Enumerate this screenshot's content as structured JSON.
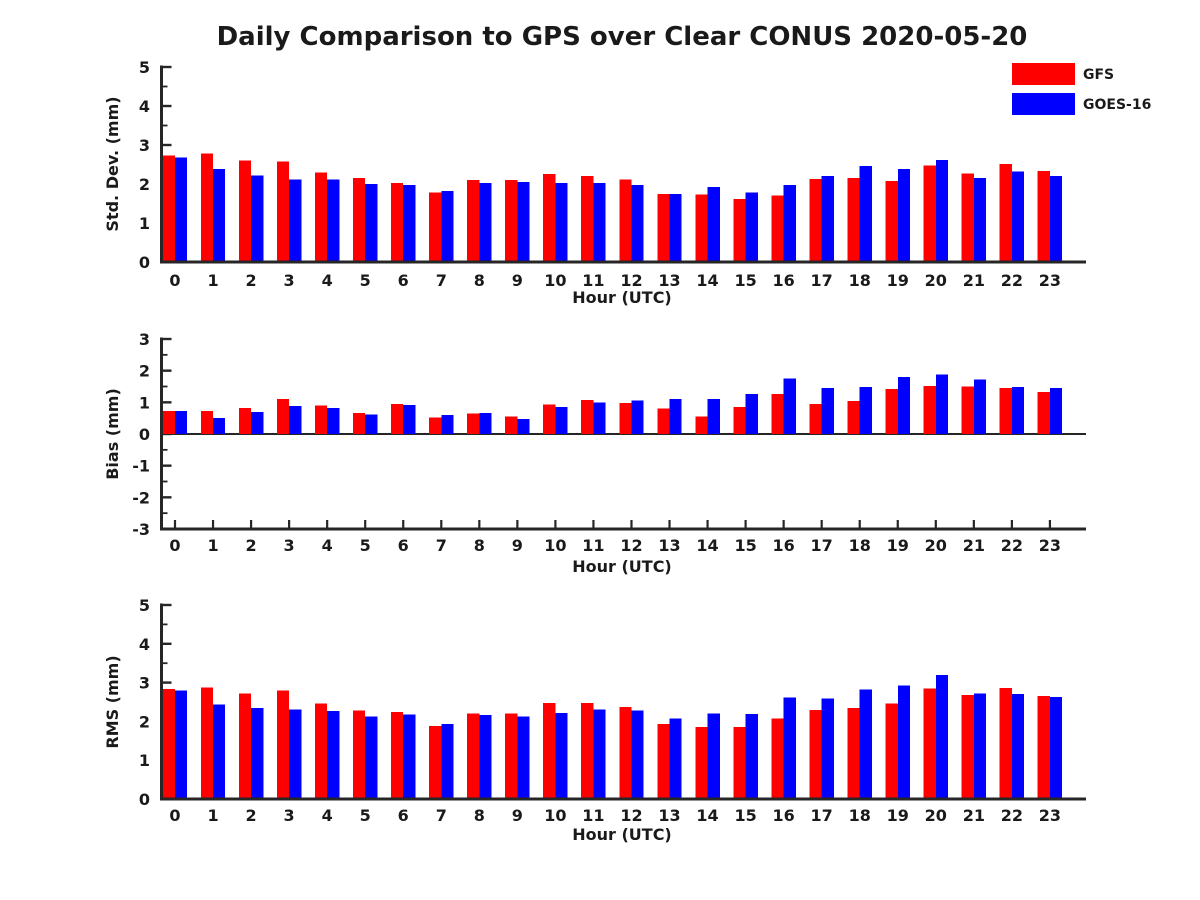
{
  "title": "Daily Comparison to GPS over Clear CONUS 2020-05-20",
  "legend": [
    {
      "label": "GFS",
      "color": "#ff0000"
    },
    {
      "label": "GOES-16",
      "color": "#0000ff"
    }
  ],
  "colors": {
    "gfs": "#ff0000",
    "goes16": "#0000ff",
    "axis": "#262626",
    "text": "#1a1a1a",
    "background": "#ffffff"
  },
  "chart_data": [
    {
      "type": "bar",
      "title": "",
      "ylabel": "Std. Dev. (mm)",
      "xlabel": "Hour (UTC)",
      "categories": [
        "0",
        "1",
        "2",
        "3",
        "4",
        "5",
        "6",
        "7",
        "8",
        "9",
        "10",
        "11",
        "12",
        "13",
        "14",
        "15",
        "16",
        "17",
        "18",
        "19",
        "20",
        "21",
        "22",
        "23"
      ],
      "ylim": [
        0,
        5
      ],
      "yticks": [
        0,
        1,
        2,
        3,
        4,
        5
      ],
      "grid": false,
      "legend_position": "top-right",
      "series": [
        {
          "name": "GFS",
          "color": "#ff0000",
          "values": [
            2.73,
            2.78,
            2.6,
            2.58,
            2.3,
            2.15,
            2.03,
            1.78,
            2.1,
            2.1,
            2.26,
            2.2,
            2.12,
            1.75,
            1.73,
            1.62,
            1.7,
            2.13,
            2.16,
            2.08,
            2.47,
            2.27,
            2.51,
            2.33
          ]
        },
        {
          "name": "GOES-16",
          "color": "#0000ff",
          "values": [
            2.68,
            2.39,
            2.22,
            2.11,
            2.12,
            2.0,
            1.98,
            1.82,
            2.03,
            2.05,
            2.02,
            2.02,
            1.98,
            1.75,
            1.92,
            1.78,
            1.98,
            2.21,
            2.46,
            2.39,
            2.62,
            2.16,
            2.32,
            2.21
          ]
        }
      ]
    },
    {
      "type": "bar",
      "title": "",
      "ylabel": "Bias (mm)",
      "xlabel": "Hour (UTC)",
      "categories": [
        "0",
        "1",
        "2",
        "3",
        "4",
        "5",
        "6",
        "7",
        "8",
        "9",
        "10",
        "11",
        "12",
        "13",
        "14",
        "15",
        "16",
        "17",
        "18",
        "19",
        "20",
        "21",
        "22",
        "23"
      ],
      "ylim": [
        -3,
        3
      ],
      "yticks": [
        -3,
        -2,
        -1,
        0,
        1,
        2,
        3
      ],
      "grid": false,
      "series": [
        {
          "name": "GFS",
          "color": "#ff0000",
          "values": [
            0.72,
            0.72,
            0.82,
            1.1,
            0.9,
            0.66,
            0.95,
            0.52,
            0.64,
            0.55,
            0.93,
            1.08,
            0.98,
            0.8,
            0.56,
            0.86,
            1.27,
            0.95,
            1.05,
            1.42,
            1.52,
            1.5,
            1.45,
            1.33
          ]
        },
        {
          "name": "GOES-16",
          "color": "#0000ff",
          "values": [
            0.73,
            0.5,
            0.7,
            0.88,
            0.82,
            0.61,
            0.92,
            0.6,
            0.66,
            0.48,
            0.85,
            1.0,
            1.06,
            1.11,
            1.11,
            1.26,
            1.75,
            1.46,
            1.49,
            1.8,
            1.88,
            1.72,
            1.49,
            1.46
          ]
        }
      ]
    },
    {
      "type": "bar",
      "title": "",
      "ylabel": "RMS (mm)",
      "xlabel": "Hour (UTC)",
      "categories": [
        "0",
        "1",
        "2",
        "3",
        "4",
        "5",
        "6",
        "7",
        "8",
        "9",
        "10",
        "11",
        "12",
        "13",
        "14",
        "15",
        "16",
        "17",
        "18",
        "19",
        "20",
        "21",
        "22",
        "23"
      ],
      "ylim": [
        0,
        5
      ],
      "yticks": [
        0,
        1,
        2,
        3,
        4,
        5
      ],
      "grid": false,
      "series": [
        {
          "name": "GFS",
          "color": "#ff0000",
          "values": [
            2.84,
            2.88,
            2.72,
            2.8,
            2.46,
            2.28,
            2.24,
            1.88,
            2.2,
            2.21,
            2.47,
            2.47,
            2.37,
            1.93,
            1.85,
            1.86,
            2.08,
            2.29,
            2.34,
            2.46,
            2.85,
            2.68,
            2.86,
            2.66
          ]
        },
        {
          "name": "GOES-16",
          "color": "#0000ff",
          "values": [
            2.79,
            2.43,
            2.34,
            2.31,
            2.27,
            2.12,
            2.18,
            1.93,
            2.16,
            2.12,
            2.22,
            2.31,
            2.28,
            2.07,
            2.21,
            2.19,
            2.61,
            2.59,
            2.82,
            2.93,
            3.19,
            2.72,
            2.71,
            2.63
          ]
        }
      ]
    }
  ]
}
